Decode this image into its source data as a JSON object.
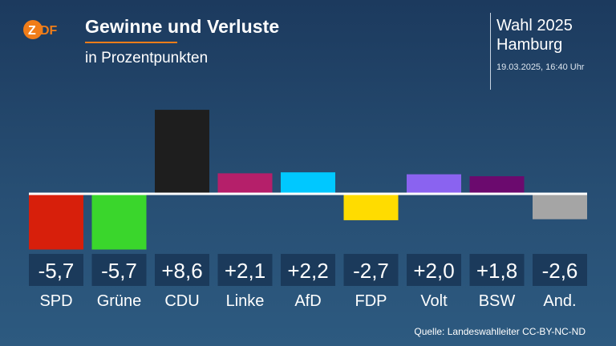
{
  "header": {
    "logo_text": "ZDF",
    "title": "Gewinne und Verluste",
    "subtitle": "in Prozentpunkten",
    "election_line1": "Wahl 2025",
    "election_line2": "Hamburg",
    "timestamp": "19.03.2025, 16:40 Uhr"
  },
  "footer": {
    "source": "Quelle: Landeswahlleiter CC-BY-NC-ND"
  },
  "colors": {
    "accent": "#f07d19",
    "background_top": "#1c3a5e",
    "background_bottom": "#2d5a80"
  },
  "chart_data": {
    "type": "bar",
    "title": "Gewinne und Verluste",
    "subtitle": "in Prozentpunkten",
    "categories": [
      "SPD",
      "Grüne",
      "CDU",
      "Linke",
      "AfD",
      "FDP",
      "Volt",
      "BSW",
      "And."
    ],
    "values": [
      -5.7,
      -5.7,
      8.6,
      2.1,
      2.2,
      -2.7,
      2.0,
      1.8,
      -2.6
    ],
    "value_labels": [
      "-5,7",
      "-5,7",
      "+8,6",
      "+2,1",
      "+2,2",
      "-2,7",
      "+2,0",
      "+1,8",
      "-2,6"
    ],
    "colors": [
      "#d71f0b",
      "#3ad62c",
      "#1e1e1e",
      "#b51f6a",
      "#00c8ff",
      "#ffdc00",
      "#8a63f0",
      "#6b0a6e",
      "#a5a5a5"
    ],
    "ylim": [
      -5.7,
      8.6
    ],
    "grid": false,
    "legend": "none"
  }
}
